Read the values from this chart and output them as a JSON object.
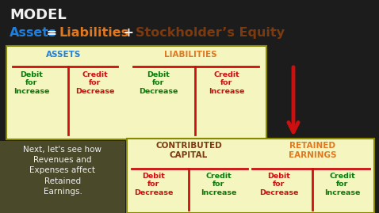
{
  "bg_color": "#1c1c1c",
  "title_model": "MODEL",
  "title_model_color": "#f0f0f0",
  "title_model_fontsize": 13,
  "eq_fontsize": 11.5,
  "eq_parts": [
    {
      "text": "Assets",
      "color": "#1e7fdf",
      "bold": true
    },
    {
      "text": " = ",
      "color": "#f0f0f0",
      "bold": true
    },
    {
      "text": "Liabilities",
      "color": "#e07820",
      "bold": true
    },
    {
      "text": " + ",
      "color": "#f0f0f0",
      "bold": true
    },
    {
      "text": "Stockholder’s Equity",
      "color": "#7b3a10",
      "bold": true
    }
  ],
  "top_box_bg": "#f5f5c0",
  "top_box_border": "#888800",
  "assets_label": "ASSETS",
  "assets_label_color": "#1e7fdf",
  "liabilities_label": "LIABILITIES",
  "liabilities_label_color": "#e07820",
  "debit_green": "#0a7a0a",
  "credit_red": "#cc1010",
  "t_line_color": "#cc1010",
  "arrow_color": "#cc1010",
  "bottom_box_bg": "#f5f5c0",
  "bottom_box_border": "#888800",
  "contributed_label": "CONTRIBUTED\nCAPITAL",
  "contributed_color": "#7b3a10",
  "retained_label": "RETAINED\nEARNINGS",
  "retained_color": "#e07820",
  "note_box_bg": "#4a4a2a",
  "note_text": "Next, let's see how\nRevenues and\nExpenses affect\nRetained\nEarnings.",
  "note_text_color": "#f0f0f0",
  "note_fontsize": 7.5,
  "label_fontsize": 7.5,
  "cell_fontsize": 6.8
}
